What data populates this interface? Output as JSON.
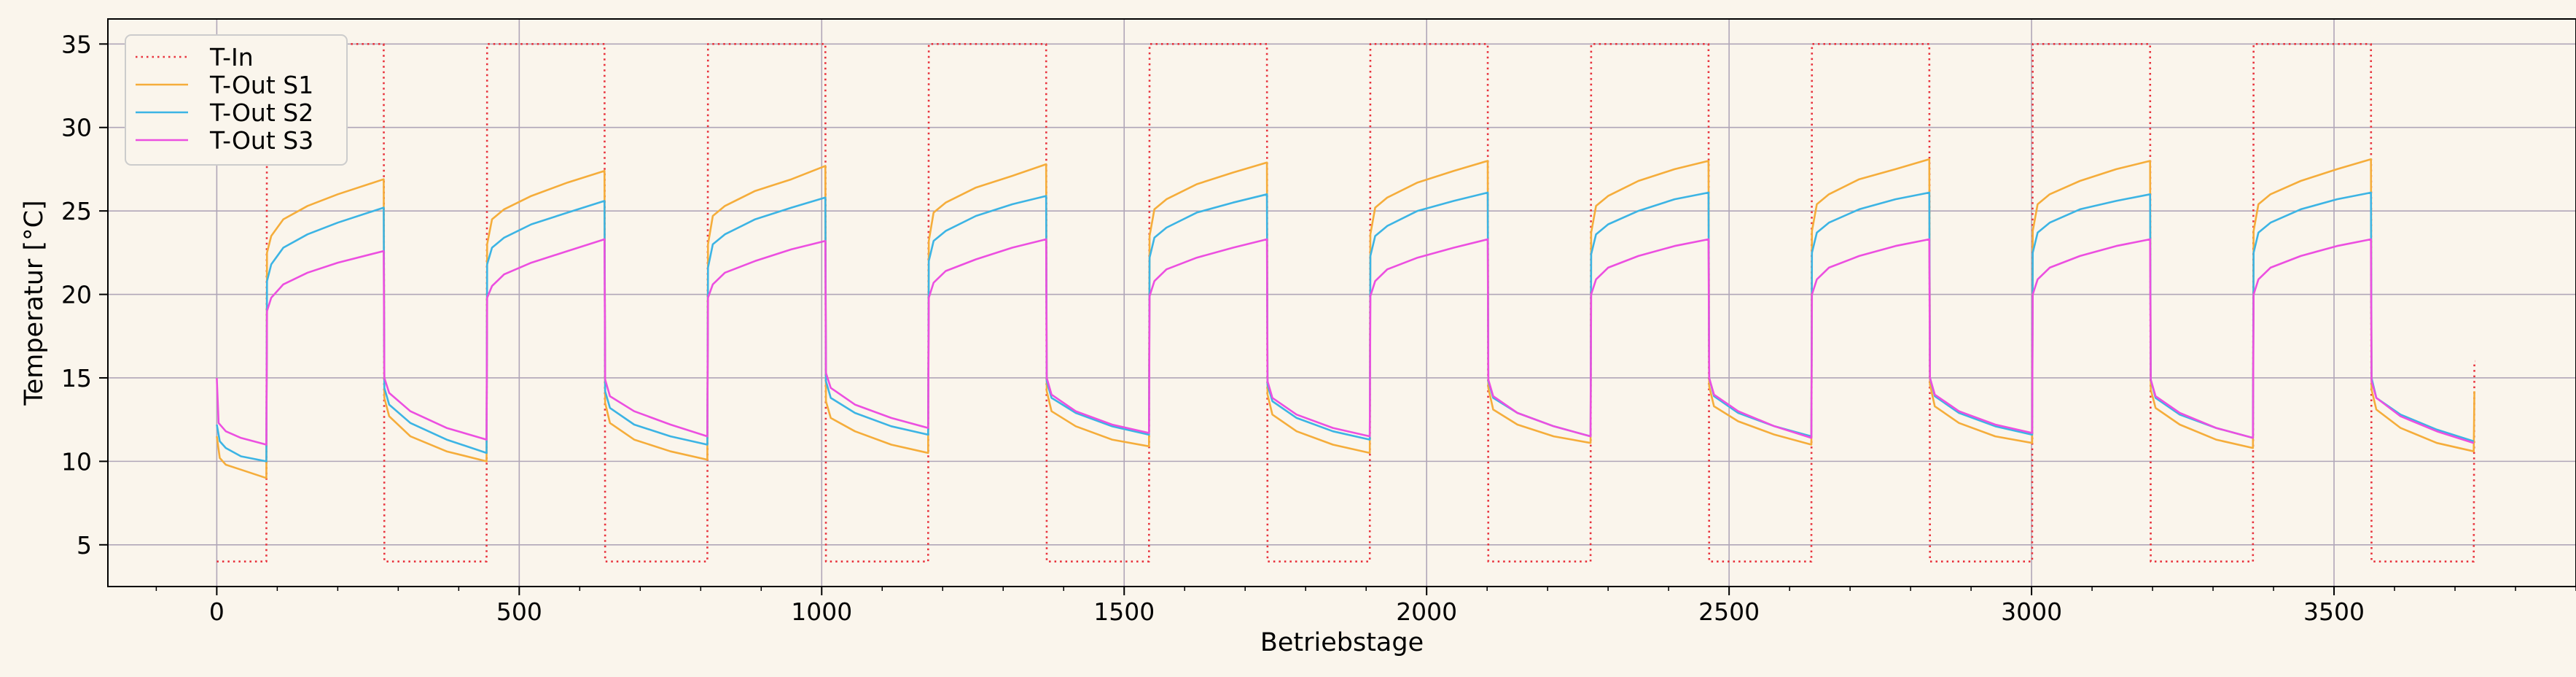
{
  "chart_data": {
    "type": "line",
    "title": "",
    "xlabel": "Betriebstage",
    "ylabel": "Temperatur [°C]",
    "xlim": [
      -180,
      3900
    ],
    "ylim": [
      2.5,
      36.5
    ],
    "xticks": [
      0,
      500,
      1000,
      1500,
      2000,
      2500,
      3000,
      3500
    ],
    "yticks": [
      5,
      10,
      15,
      20,
      25,
      30,
      35
    ],
    "grid": true,
    "legend_position": "top-left",
    "series": [
      {
        "name": "T-In",
        "color": "#e8323c",
        "style": "dotted",
        "x": [
          0,
          82,
          83,
          276,
          277,
          446,
          447,
          641,
          642,
          811,
          812,
          1006,
          1007,
          1176,
          1177,
          1371,
          1372,
          1541,
          1542,
          1736,
          1737,
          1906,
          1907,
          2101,
          2102,
          2271,
          2272,
          2466,
          2467,
          2636,
          2637,
          2831,
          2832,
          3001,
          3002,
          3196,
          3197,
          3366,
          3367,
          3561,
          3562,
          3731,
          3732,
          3733
        ],
        "y": [
          4,
          4,
          35,
          35,
          4,
          4,
          35,
          35,
          4,
          4,
          35,
          35,
          4,
          4,
          35,
          35,
          4,
          4,
          35,
          35,
          4,
          4,
          35,
          35,
          4,
          4,
          35,
          35,
          4,
          4,
          35,
          35,
          4,
          4,
          35,
          35,
          4,
          4,
          35,
          35,
          4,
          4,
          16,
          16
        ]
      },
      {
        "name": "T-Out S1",
        "color": "#f5ad3b",
        "style": "solid",
        "x": [
          0,
          5,
          15,
          40,
          82,
          83,
          90,
          110,
          150,
          200,
          276,
          277,
          285,
          320,
          380,
          446,
          447,
          455,
          475,
          520,
          580,
          641,
          642,
          650,
          690,
          750,
          811,
          812,
          820,
          840,
          890,
          950,
          1006,
          1007,
          1015,
          1055,
          1115,
          1176,
          1177,
          1185,
          1205,
          1255,
          1315,
          1371,
          1372,
          1380,
          1420,
          1480,
          1541,
          1542,
          1550,
          1570,
          1620,
          1680,
          1736,
          1737,
          1745,
          1785,
          1845,
          1906,
          1907,
          1915,
          1935,
          1985,
          2045,
          2101,
          2102,
          2110,
          2150,
          2210,
          2271,
          2272,
          2280,
          2300,
          2350,
          2410,
          2466,
          2467,
          2475,
          2515,
          2575,
          2636,
          2637,
          2645,
          2665,
          2715,
          2775,
          2831,
          2832,
          2840,
          2880,
          2940,
          3001,
          3002,
          3010,
          3030,
          3080,
          3140,
          3196,
          3197,
          3205,
          3245,
          3305,
          3366,
          3367,
          3375,
          3395,
          3445,
          3505,
          3561,
          3562,
          3570,
          3610,
          3670,
          3731,
          3732
        ],
        "y": [
          11.5,
          10.2,
          9.8,
          9.5,
          9.0,
          22.5,
          23.5,
          24.5,
          25.3,
          26.0,
          26.9,
          13.8,
          12.7,
          11.5,
          10.6,
          10.0,
          23.0,
          24.5,
          25.1,
          25.9,
          26.7,
          27.4,
          13.5,
          12.3,
          11.3,
          10.6,
          10.1,
          23.0,
          24.7,
          25.3,
          26.2,
          26.9,
          27.7,
          13.6,
          12.6,
          11.8,
          11.0,
          10.5,
          23.2,
          24.9,
          25.5,
          26.4,
          27.1,
          27.8,
          14.2,
          13.0,
          12.1,
          11.3,
          10.9,
          23.5,
          25.1,
          25.7,
          26.6,
          27.3,
          27.9,
          14.0,
          12.8,
          11.8,
          11.0,
          10.5,
          23.6,
          25.2,
          25.8,
          26.7,
          27.4,
          28.0,
          14.4,
          13.1,
          12.2,
          11.5,
          11.1,
          23.7,
          25.3,
          25.9,
          26.8,
          27.5,
          28.0,
          14.5,
          13.3,
          12.4,
          11.6,
          11.0,
          23.8,
          25.4,
          26.0,
          26.9,
          27.5,
          28.1,
          14.6,
          13.3,
          12.3,
          11.5,
          11.1,
          23.8,
          25.4,
          26.0,
          26.8,
          27.5,
          28.0,
          14.3,
          13.2,
          12.2,
          11.3,
          10.8,
          23.8,
          25.4,
          26.0,
          26.8,
          27.5,
          28.1,
          14.3,
          13.1,
          12.0,
          11.1,
          10.6,
          14.2
        ]
      },
      {
        "name": "T-Out S2",
        "color": "#3cb4e4",
        "style": "solid",
        "x": [
          0,
          5,
          15,
          40,
          82,
          83,
          90,
          110,
          150,
          200,
          276,
          277,
          285,
          320,
          380,
          446,
          447,
          455,
          475,
          520,
          580,
          641,
          642,
          650,
          690,
          750,
          811,
          812,
          820,
          840,
          890,
          950,
          1006,
          1007,
          1015,
          1055,
          1115,
          1176,
          1177,
          1185,
          1205,
          1255,
          1315,
          1371,
          1372,
          1380,
          1420,
          1480,
          1541,
          1542,
          1550,
          1570,
          1620,
          1680,
          1736,
          1737,
          1745,
          1785,
          1845,
          1906,
          1907,
          1915,
          1935,
          1985,
          2045,
          2101,
          2102,
          2110,
          2150,
          2210,
          2271,
          2272,
          2280,
          2300,
          2350,
          2410,
          2466,
          2467,
          2475,
          2515,
          2575,
          2636,
          2637,
          2645,
          2665,
          2715,
          2775,
          2831,
          2832,
          2840,
          2880,
          2940,
          3001,
          3002,
          3010,
          3030,
          3080,
          3140,
          3196,
          3197,
          3205,
          3245,
          3305,
          3366,
          3367,
          3375,
          3395,
          3445,
          3505,
          3561,
          3562,
          3570,
          3610,
          3670,
          3731
        ],
        "y": [
          12.2,
          11.2,
          10.8,
          10.3,
          10.0,
          20.8,
          21.8,
          22.8,
          23.6,
          24.3,
          25.2,
          14.4,
          13.4,
          12.3,
          11.3,
          10.5,
          21.8,
          22.8,
          23.4,
          24.2,
          24.9,
          25.6,
          14.2,
          13.2,
          12.2,
          11.5,
          11.0,
          21.6,
          23.0,
          23.6,
          24.5,
          25.2,
          25.8,
          14.8,
          13.8,
          12.9,
          12.1,
          11.6,
          22.0,
          23.2,
          23.8,
          24.7,
          25.4,
          25.9,
          14.8,
          13.8,
          12.9,
          12.1,
          11.6,
          22.2,
          23.4,
          24.0,
          24.9,
          25.5,
          26.0,
          14.6,
          13.6,
          12.6,
          11.8,
          11.3,
          22.3,
          23.5,
          24.1,
          25.0,
          25.6,
          26.1,
          14.8,
          13.8,
          12.9,
          12.1,
          11.5,
          22.4,
          23.6,
          24.2,
          25.0,
          25.7,
          26.1,
          15.0,
          13.9,
          12.9,
          12.1,
          11.5,
          22.5,
          23.7,
          24.3,
          25.1,
          25.7,
          26.1,
          15.0,
          13.9,
          12.9,
          12.1,
          11.6,
          22.5,
          23.7,
          24.3,
          25.1,
          25.6,
          26.0,
          14.9,
          13.8,
          12.8,
          12.0,
          11.4,
          22.5,
          23.7,
          24.3,
          25.1,
          25.7,
          26.1,
          15.0,
          13.8,
          12.8,
          11.9,
          11.2
        ]
      },
      {
        "name": "T-Out S3",
        "color": "#ec4fe0",
        "style": "solid",
        "x": [
          0,
          3,
          15,
          40,
          82,
          83,
          90,
          110,
          150,
          200,
          276,
          277,
          285,
          320,
          380,
          446,
          447,
          455,
          475,
          520,
          580,
          641,
          642,
          650,
          690,
          750,
          811,
          812,
          820,
          840,
          890,
          950,
          1006,
          1007,
          1015,
          1055,
          1115,
          1176,
          1177,
          1185,
          1205,
          1255,
          1315,
          1371,
          1372,
          1380,
          1420,
          1480,
          1541,
          1542,
          1550,
          1570,
          1620,
          1680,
          1736,
          1737,
          1745,
          1785,
          1845,
          1906,
          1907,
          1915,
          1935,
          1985,
          2045,
          2101,
          2102,
          2110,
          2150,
          2210,
          2271,
          2272,
          2280,
          2300,
          2350,
          2410,
          2466,
          2467,
          2475,
          2515,
          2575,
          2636,
          2637,
          2645,
          2665,
          2715,
          2775,
          2831,
          2832,
          2840,
          2880,
          2940,
          3001,
          3002,
          3010,
          3030,
          3080,
          3140,
          3196,
          3197,
          3205,
          3245,
          3305,
          3366,
          3367,
          3375,
          3395,
          3445,
          3505,
          3561,
          3562,
          3570,
          3610,
          3670,
          3731
        ],
        "y": [
          15.0,
          12.3,
          11.8,
          11.4,
          11.0,
          19.0,
          19.8,
          20.6,
          21.3,
          21.9,
          22.6,
          15.0,
          14.1,
          13.0,
          12.0,
          11.3,
          19.8,
          20.5,
          21.2,
          21.9,
          22.6,
          23.3,
          14.9,
          13.9,
          13.0,
          12.2,
          11.5,
          19.8,
          20.6,
          21.3,
          22.0,
          22.7,
          23.2,
          15.3,
          14.4,
          13.4,
          12.6,
          12.0,
          19.8,
          20.7,
          21.4,
          22.1,
          22.8,
          23.3,
          15.0,
          14.0,
          13.0,
          12.2,
          11.7,
          19.9,
          20.8,
          21.5,
          22.2,
          22.8,
          23.3,
          14.8,
          13.8,
          12.8,
          12.0,
          11.5,
          19.9,
          20.8,
          21.5,
          22.2,
          22.8,
          23.3,
          14.9,
          13.9,
          12.9,
          12.1,
          11.5,
          20.0,
          20.9,
          21.6,
          22.3,
          22.9,
          23.3,
          15.0,
          14.0,
          13.0,
          12.1,
          11.4,
          20.0,
          20.9,
          21.6,
          22.3,
          22.9,
          23.3,
          15.0,
          14.0,
          13.0,
          12.2,
          11.7,
          20.0,
          20.9,
          21.6,
          22.3,
          22.9,
          23.3,
          14.9,
          13.9,
          12.9,
          12.0,
          11.4,
          20.0,
          20.9,
          21.6,
          22.3,
          22.9,
          23.3,
          14.8,
          13.8,
          12.7,
          11.8,
          11.1
        ]
      }
    ]
  }
}
